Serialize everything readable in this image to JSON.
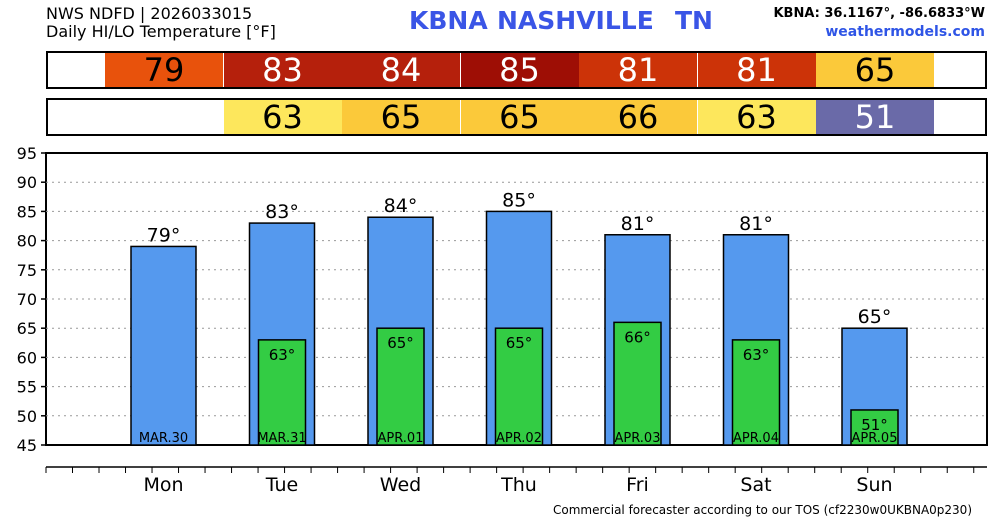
{
  "header": {
    "line1": "NWS NDFD | 2026033015",
    "line2": "Daily HI/LO Temperature [°F]",
    "station": "KBNA",
    "city": "NASHVILLE",
    "state": "TN",
    "coords": "KBNA: 36.1167°, -86.6833°W",
    "site": "weathermodels.com"
  },
  "footer": "Commercial forecaster according to our TOS (cf2230w0UKBNA0p230)",
  "hi_strip": [
    {
      "text": "79",
      "bg": "#e8520c",
      "fg": "#000000"
    },
    {
      "text": "83",
      "bg": "#b5200c",
      "fg": "#ffffff"
    },
    {
      "text": "84",
      "bg": "#b5200c",
      "fg": "#ffffff"
    },
    {
      "text": "85",
      "bg": "#9e0e05",
      "fg": "#ffffff"
    },
    {
      "text": "81",
      "bg": "#cc3308",
      "fg": "#ffffff"
    },
    {
      "text": "81",
      "bg": "#cc3308",
      "fg": "#ffffff"
    },
    {
      "text": "65",
      "bg": "#fbc93a",
      "fg": "#000000"
    }
  ],
  "lo_strip": [
    {
      "text": "",
      "bg": "#ffffff",
      "fg": "#000000"
    },
    {
      "text": "63",
      "bg": "#fde75c",
      "fg": "#000000"
    },
    {
      "text": "65",
      "bg": "#fbc93a",
      "fg": "#000000"
    },
    {
      "text": "65",
      "bg": "#fbc93a",
      "fg": "#000000"
    },
    {
      "text": "66",
      "bg": "#fbc93a",
      "fg": "#000000"
    },
    {
      "text": "63",
      "bg": "#fde75c",
      "fg": "#000000"
    },
    {
      "text": "51",
      "bg": "#6a6aa8",
      "fg": "#ffffff"
    }
  ],
  "chart_data": {
    "type": "bar",
    "categories": [
      "MAR.30",
      "MAR.31",
      "APR.01",
      "APR.02",
      "APR.03",
      "APR.04",
      "APR.05"
    ],
    "days": [
      "Mon",
      "Tue",
      "Wed",
      "Thu",
      "Fri",
      "Sat",
      "Sun"
    ],
    "series": [
      {
        "values": [
          79,
          83,
          84,
          85,
          81,
          81,
          65
        ],
        "color": "#5599ee",
        "labels": [
          "79°",
          "83°",
          "84°",
          "85°",
          "81°",
          "81°",
          "65°"
        ]
      },
      {
        "values": [
          null,
          63,
          65,
          65,
          66,
          63,
          51
        ],
        "color": "#33cc44",
        "labels": [
          "",
          "63°",
          "65°",
          "65°",
          "66°",
          "63°",
          "51°"
        ]
      }
    ],
    "y_ticks": [
      "95",
      "90",
      "85",
      "80",
      "75",
      "70",
      "65",
      "60",
      "55",
      "50",
      "45"
    ],
    "ylim": [
      45,
      95
    ],
    "grid": true
  }
}
